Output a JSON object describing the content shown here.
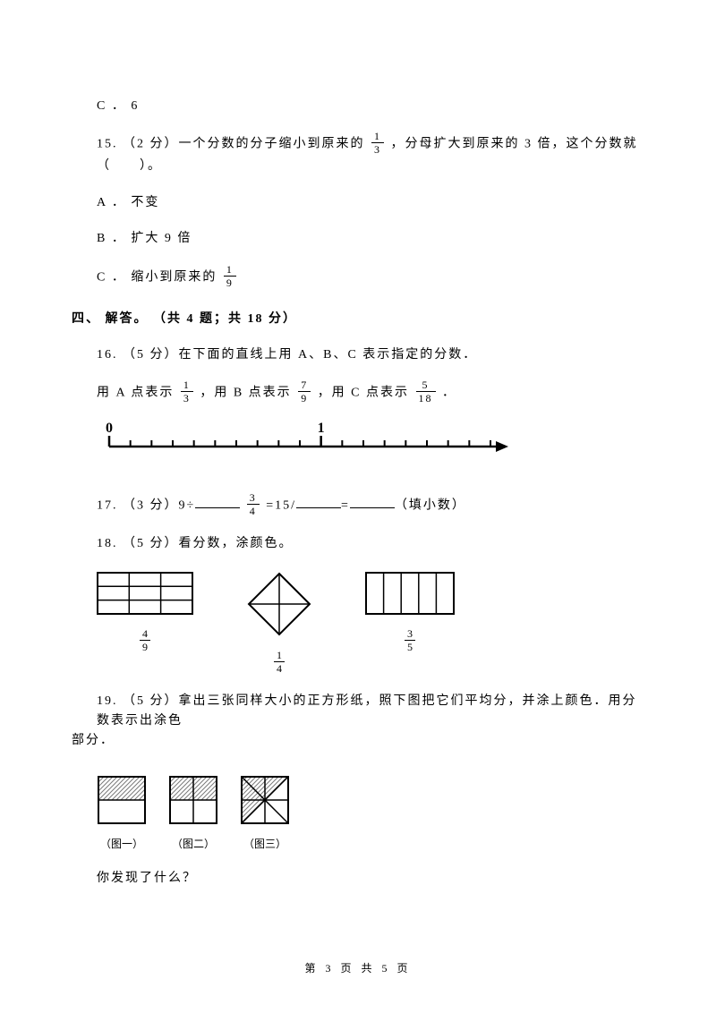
{
  "colors": {
    "text": "#000000",
    "bg": "#ffffff",
    "line": "#000000",
    "hatch": "#7a7a7a"
  },
  "opt_c6": "C ． 6",
  "q15": {
    "prefix": "15.  （2 分）一个分数的分子缩小到原来的 ",
    "frac": {
      "n": "1",
      "d": "3"
    },
    "suffix": " ，分母扩大到原来的 3 倍，这个分数就（　　）。",
    "optA": "A ． 不变",
    "optB": "B ． 扩大 9 倍",
    "optC_prefix": "C ． 缩小到原来的 ",
    "optC_frac": {
      "n": "1",
      "d": "9"
    }
  },
  "section4_title": "四、 解答。 （共 4 题；共 18 分）",
  "q16": {
    "line1": "16.  （5 分）在下面的直线上用 A、B、C 表示指定的分数．",
    "pA": "用 A 点表示 ",
    "fracA": {
      "n": "1",
      "d": "3"
    },
    "pB": " ，用 B 点表示 ",
    "fracB": {
      "n": "7",
      "d": "9"
    },
    "pC": " ，用 C 点表示 ",
    "fracC": {
      "n": "5",
      "d": "18"
    },
    "end": " ．",
    "axis": {
      "label0": "0",
      "label1": "1",
      "ticks": 18,
      "major0_idx": 0,
      "major1_idx": 10
    }
  },
  "q17": {
    "prefix": "17.  （3 分）9÷",
    "mid1": " ",
    "frac": {
      "n": "3",
      "d": "4"
    },
    "mid2": " =15/",
    "mid3": "=",
    "suffix": "（填小数）"
  },
  "q18": {
    "text": "18.  （5 分）看分数，涂颜色。",
    "shapes": [
      {
        "type": "grid3x3",
        "frac": {
          "n": "4",
          "d": "9"
        }
      },
      {
        "type": "diamond4",
        "frac": {
          "n": "1",
          "d": "4"
        }
      },
      {
        "type": "cols5",
        "frac": {
          "n": "3",
          "d": "5"
        }
      }
    ]
  },
  "q19": {
    "line1": "19.  （5 分）拿出三张同样大小的正方形纸，照下图把它们平均分，并涂上颜色．用分数表示出涂色",
    "line2": "部分．",
    "captions": [
      "（图一）",
      "（图二）",
      "（图三）"
    ],
    "question": "你发现了什么？"
  },
  "footer": "第 3 页 共 5 页"
}
